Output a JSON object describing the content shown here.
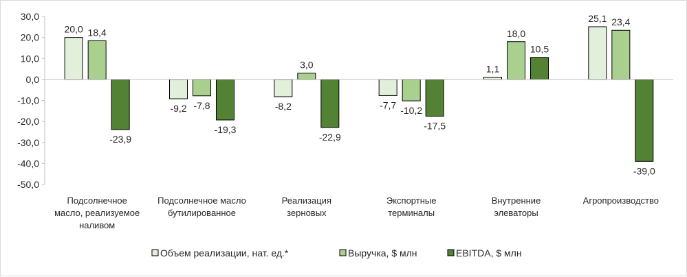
{
  "chart_data": {
    "type": "bar",
    "categories": [
      [
        "Подсолнечное",
        "масло, реализуемое",
        "наливом"
      ],
      [
        "Подсолнечное масло",
        "бутилированное"
      ],
      [
        "Реализация",
        "зерновых"
      ],
      [
        "Экспортные",
        "терминалы"
      ],
      [
        "Внутренние",
        "элеваторы"
      ],
      [
        "Агропроизводство"
      ]
    ],
    "series": [
      {
        "name": "Объем реализации, нат. ед.*",
        "color": "#e2efda",
        "values": [
          20.0,
          -9.2,
          -8.2,
          -7.7,
          1.1,
          25.1
        ]
      },
      {
        "name": "Выручка, $ млн",
        "color": "#a9d08e",
        "values": [
          18.4,
          -7.8,
          3.0,
          -10.2,
          18.0,
          23.4
        ]
      },
      {
        "name": "EBITDA, $ млн",
        "color": "#548235",
        "values": [
          -23.9,
          -19.3,
          -22.9,
          -17.5,
          10.5,
          -39.0
        ]
      }
    ],
    "data_labels": [
      [
        "20,0",
        "-9,2",
        "-8,2",
        "-7,7",
        "1,1",
        "25,1"
      ],
      [
        "18,4",
        "-7,8",
        "3,0",
        "-10,2",
        "18,0",
        "23,4"
      ],
      [
        "-23,9",
        "-19,3",
        "-22,9",
        "-17,5",
        "10,5",
        "-39,0"
      ]
    ],
    "ylim": [
      -50,
      30
    ],
    "yticks": [
      30,
      20,
      10,
      0,
      -10,
      -20,
      -30,
      -40,
      -50
    ],
    "ytick_labels": [
      "30,0",
      "20,0",
      "10,0",
      "0,0",
      "-10,0",
      "-20,0",
      "-30,0",
      "-40,0",
      "-50,0"
    ],
    "grid": false,
    "legend_position": "bottom",
    "bar_edge_color": "#000000"
  }
}
